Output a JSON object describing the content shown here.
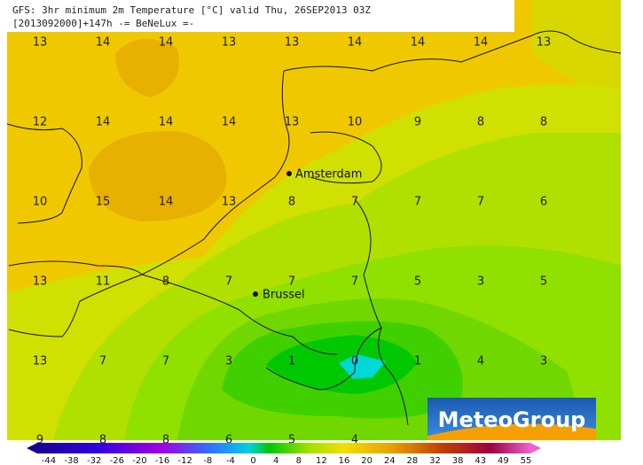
{
  "header": {
    "line1": "GFS: 3hr minimum 2m Temperature [°C] valid Thu, 26SEP2013 03Z",
    "line2": "[2013092000]+147h -= BeNeLux =-"
  },
  "grid": {
    "rows": [
      [
        "13",
        "14",
        "14",
        "13",
        "13",
        "14",
        "14",
        "14",
        "13"
      ],
      [
        "12",
        "14",
        "14",
        "14",
        "13",
        "10",
        "9",
        "8",
        "8"
      ],
      [
        "10",
        "15",
        "14",
        "13",
        "8",
        "7",
        "7",
        "7",
        "6"
      ],
      [
        "13",
        "11",
        "8",
        "7",
        "7",
        "7",
        "5",
        "3",
        "5"
      ],
      [
        "13",
        "7",
        "7",
        "3",
        "1",
        "0",
        "1",
        "4",
        "3"
      ],
      [
        "9",
        "8",
        "8",
        "6",
        "5",
        "4"
      ]
    ]
  },
  "cities": [
    {
      "label": "Amsterdam"
    },
    {
      "label": "Brussel"
    }
  ],
  "legend": {
    "labels": [
      -44,
      -38,
      -32,
      -26,
      -20,
      -16,
      -12,
      -8,
      -4,
      0,
      4,
      8,
      12,
      16,
      20,
      24,
      28,
      32,
      38,
      43,
      49,
      55
    ]
  },
  "logo": "MeteoGroup"
}
